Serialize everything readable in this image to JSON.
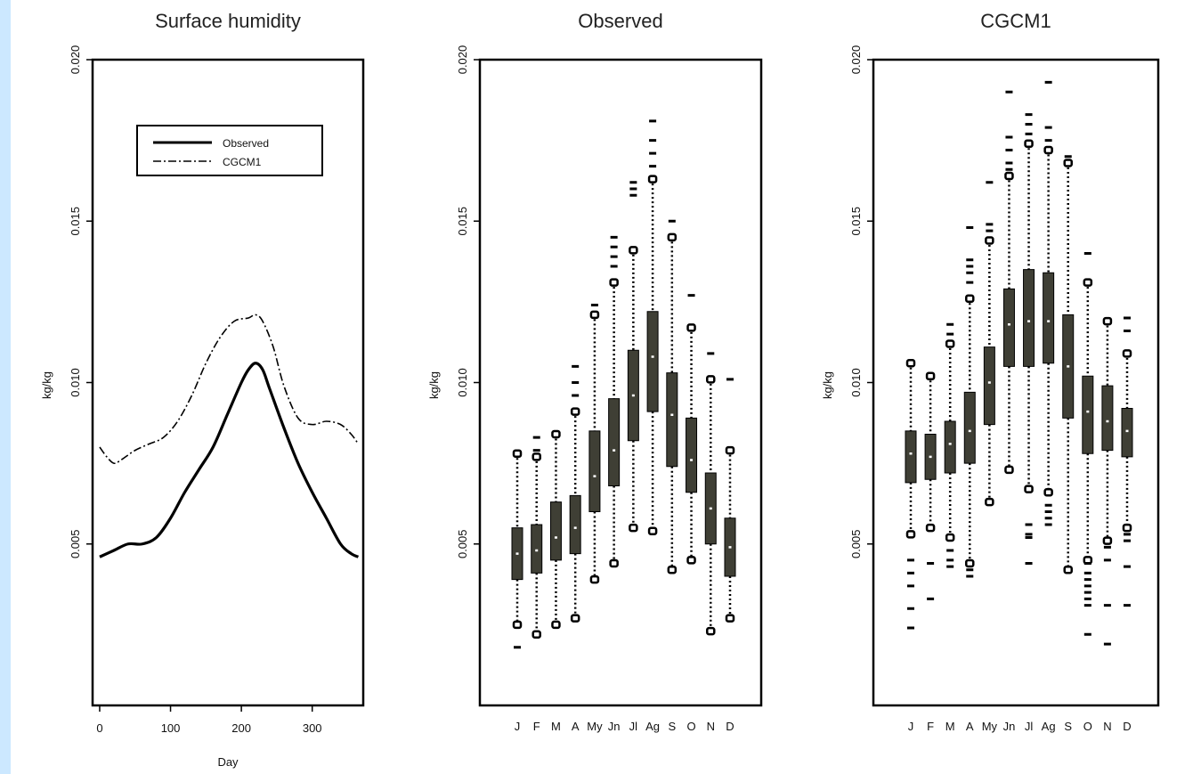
{
  "colors": {
    "page_bg": "#cce8ff",
    "plot_bg": "#ffffff",
    "ink": "#000000",
    "box_fill": "#3f3f35",
    "median": "#ffffff"
  },
  "chart_data": [
    {
      "type": "line",
      "title": "Surface humidity",
      "xlabel": "Day",
      "ylabel": "kg/kg",
      "xlim": [
        -10,
        372
      ],
      "ylim": [
        0,
        0.02
      ],
      "xticks": [
        "0",
        "100",
        "200",
        "300"
      ],
      "yticks": [
        "0.005",
        "0.010",
        "0.015",
        "0.020"
      ],
      "legend": {
        "position": "top-right",
        "entries": [
          "Observed",
          "CGCM1"
        ]
      },
      "series": [
        {
          "name": "Observed",
          "style": "solid",
          "x": [
            0,
            20,
            40,
            60,
            80,
            100,
            120,
            140,
            160,
            180,
            200,
            210,
            220,
            230,
            240,
            260,
            280,
            300,
            320,
            340,
            355,
            365
          ],
          "y": [
            0.0046,
            0.0048,
            0.005,
            0.005,
            0.0052,
            0.0058,
            0.0066,
            0.0073,
            0.008,
            0.009,
            0.01,
            0.0104,
            0.0106,
            0.0104,
            0.0098,
            0.0086,
            0.0075,
            0.0066,
            0.0058,
            0.005,
            0.0047,
            0.0046
          ]
        },
        {
          "name": "CGCM1",
          "style": "dashdot",
          "x": [
            0,
            10,
            20,
            30,
            50,
            70,
            90,
            110,
            130,
            150,
            170,
            190,
            210,
            220,
            230,
            245,
            260,
            280,
            300,
            320,
            340,
            355,
            365
          ],
          "y": [
            0.008,
            0.0077,
            0.0075,
            0.0076,
            0.0079,
            0.0081,
            0.0083,
            0.0088,
            0.0096,
            0.0106,
            0.0114,
            0.0119,
            0.012,
            0.0121,
            0.0119,
            0.0111,
            0.0099,
            0.0089,
            0.0087,
            0.0088,
            0.0087,
            0.0084,
            0.0081
          ]
        }
      ]
    },
    {
      "type": "box",
      "title": "Observed",
      "ylabel": "kg/kg",
      "ylim": [
        0,
        0.02
      ],
      "yticks": [
        "0.005",
        "0.010",
        "0.015",
        "0.020"
      ],
      "categories": [
        "J",
        "F",
        "M",
        "A",
        "My",
        "Jn",
        "Jl",
        "Ag",
        "S",
        "O",
        "N",
        "D"
      ],
      "boxes": [
        {
          "q1": 0.0039,
          "median": 0.0047,
          "q3": 0.0055,
          "whisker_low": 0.0025,
          "whisker_high": 0.0078,
          "outliers": [
            0.0018
          ]
        },
        {
          "q1": 0.0041,
          "median": 0.0048,
          "q3": 0.0056,
          "whisker_low": 0.0022,
          "whisker_high": 0.0077,
          "outliers": [
            0.0079,
            0.0083
          ]
        },
        {
          "q1": 0.0045,
          "median": 0.0052,
          "q3": 0.0063,
          "whisker_low": 0.0025,
          "whisker_high": 0.0084,
          "outliers": []
        },
        {
          "q1": 0.0047,
          "median": 0.0055,
          "q3": 0.0065,
          "whisker_low": 0.0027,
          "whisker_high": 0.0091,
          "outliers": [
            0.0096,
            0.01,
            0.0105
          ]
        },
        {
          "q1": 0.006,
          "median": 0.0071,
          "q3": 0.0085,
          "whisker_low": 0.0039,
          "whisker_high": 0.0121,
          "outliers": [
            0.0124
          ]
        },
        {
          "q1": 0.0068,
          "median": 0.0079,
          "q3": 0.0095,
          "whisker_low": 0.0044,
          "whisker_high": 0.0131,
          "outliers": [
            0.0136,
            0.0139,
            0.0142,
            0.0145
          ]
        },
        {
          "q1": 0.0082,
          "median": 0.0096,
          "q3": 0.011,
          "whisker_low": 0.0055,
          "whisker_high": 0.0141,
          "outliers": [
            0.0158,
            0.016,
            0.0162
          ]
        },
        {
          "q1": 0.0091,
          "median": 0.0108,
          "q3": 0.0122,
          "whisker_low": 0.0054,
          "whisker_high": 0.0163,
          "outliers": [
            0.0167,
            0.0171,
            0.0175,
            0.0181
          ]
        },
        {
          "q1": 0.0074,
          "median": 0.009,
          "q3": 0.0103,
          "whisker_low": 0.0042,
          "whisker_high": 0.0145,
          "outliers": [
            0.015
          ]
        },
        {
          "q1": 0.0066,
          "median": 0.0076,
          "q3": 0.0089,
          "whisker_low": 0.0045,
          "whisker_high": 0.0117,
          "outliers": [
            0.0127
          ]
        },
        {
          "q1": 0.005,
          "median": 0.0061,
          "q3": 0.0072,
          "whisker_low": 0.0023,
          "whisker_high": 0.0101,
          "outliers": [
            0.0109
          ]
        },
        {
          "q1": 0.004,
          "median": 0.0049,
          "q3": 0.0058,
          "whisker_low": 0.0027,
          "whisker_high": 0.0079,
          "outliers": [
            0.0101
          ]
        }
      ]
    },
    {
      "type": "box",
      "title": "CGCM1",
      "ylabel": "kg/kg",
      "ylim": [
        0,
        0.02
      ],
      "yticks": [
        "0.005",
        "0.010",
        "0.015",
        "0.020"
      ],
      "categories": [
        "J",
        "F",
        "M",
        "A",
        "My",
        "Jn",
        "Jl",
        "Ag",
        "S",
        "O",
        "N",
        "D"
      ],
      "boxes": [
        {
          "q1": 0.0069,
          "median": 0.0078,
          "q3": 0.0085,
          "whisker_low": 0.0053,
          "whisker_high": 0.0106,
          "outliers": [
            0.0024,
            0.003,
            0.0037,
            0.0041,
            0.0045
          ]
        },
        {
          "q1": 0.007,
          "median": 0.0077,
          "q3": 0.0084,
          "whisker_low": 0.0055,
          "whisker_high": 0.0102,
          "outliers": [
            0.0033,
            0.0044
          ]
        },
        {
          "q1": 0.0072,
          "median": 0.0081,
          "q3": 0.0088,
          "whisker_low": 0.0052,
          "whisker_high": 0.0112,
          "outliers": [
            0.0043,
            0.0045,
            0.0048,
            0.0115,
            0.0118
          ]
        },
        {
          "q1": 0.0075,
          "median": 0.0085,
          "q3": 0.0097,
          "whisker_low": 0.0044,
          "whisker_high": 0.0126,
          "outliers": [
            0.004,
            0.0042,
            0.0131,
            0.0134,
            0.0136,
            0.0138,
            0.0148
          ]
        },
        {
          "q1": 0.0087,
          "median": 0.01,
          "q3": 0.0111,
          "whisker_low": 0.0063,
          "whisker_high": 0.0144,
          "outliers": [
            0.0147,
            0.0149,
            0.0162
          ]
        },
        {
          "q1": 0.0105,
          "median": 0.0118,
          "q3": 0.0129,
          "whisker_low": 0.0073,
          "whisker_high": 0.0164,
          "outliers": [
            0.0166,
            0.0168,
            0.0172,
            0.0176,
            0.019
          ]
        },
        {
          "q1": 0.0105,
          "median": 0.0119,
          "q3": 0.0135,
          "whisker_low": 0.0067,
          "whisker_high": 0.0174,
          "outliers": [
            0.0044,
            0.0052,
            0.0053,
            0.0056,
            0.0177,
            0.018,
            0.0183
          ]
        },
        {
          "q1": 0.0106,
          "median": 0.0119,
          "q3": 0.0134,
          "whisker_low": 0.0066,
          "whisker_high": 0.0172,
          "outliers": [
            0.0056,
            0.0058,
            0.006,
            0.0062,
            0.0175,
            0.0179,
            0.0193
          ]
        },
        {
          "q1": 0.0089,
          "median": 0.0105,
          "q3": 0.0121,
          "whisker_low": 0.0042,
          "whisker_high": 0.0168,
          "outliers": [
            0.017
          ]
        },
        {
          "q1": 0.0078,
          "median": 0.0091,
          "q3": 0.0102,
          "whisker_low": 0.0045,
          "whisker_high": 0.0131,
          "outliers": [
            0.0022,
            0.0031,
            0.0033,
            0.0035,
            0.0037,
            0.0039,
            0.0041,
            0.0044,
            0.014
          ]
        },
        {
          "q1": 0.0079,
          "median": 0.0088,
          "q3": 0.0099,
          "whisker_low": 0.0051,
          "whisker_high": 0.0119,
          "outliers": [
            0.0019,
            0.0031,
            0.0045,
            0.0049
          ]
        },
        {
          "q1": 0.0077,
          "median": 0.0085,
          "q3": 0.0092,
          "whisker_low": 0.0055,
          "whisker_high": 0.0109,
          "outliers": [
            0.0031,
            0.0043,
            0.0051,
            0.0053,
            0.0116,
            0.012
          ]
        }
      ]
    }
  ]
}
